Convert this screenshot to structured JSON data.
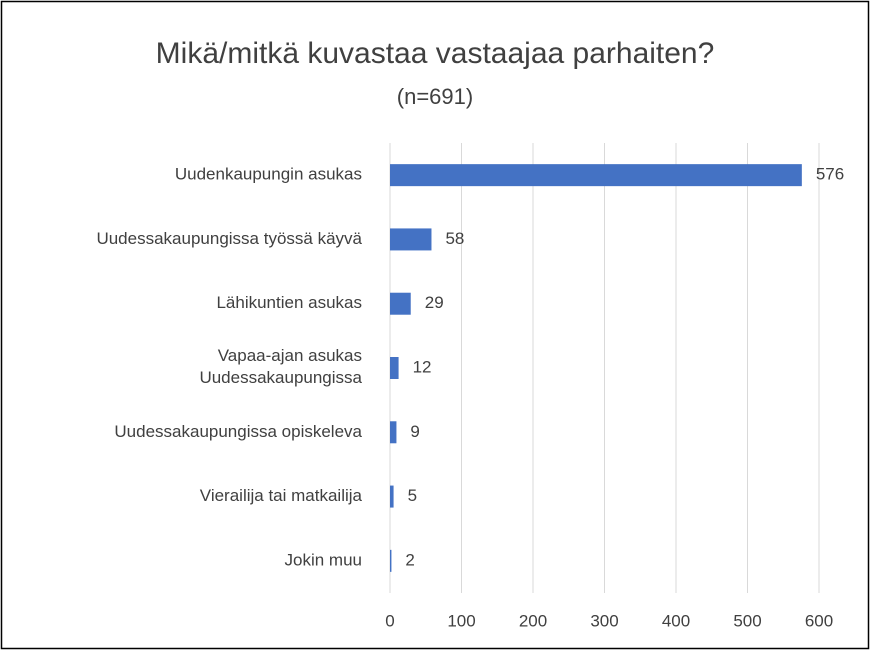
{
  "chart_data": {
    "type": "bar",
    "orientation": "horizontal",
    "title": "Mikä/mitkä kuvastaa vastaajaa parhaiten?",
    "subtitle": "(n=691)",
    "categories": [
      "Uudenkaupungin asukas",
      "Uudessakaupungissa työssä käyvä",
      "Lähikuntien asukas",
      "Vapaa-ajan asukas Uudessakaupungissa",
      "Uudessakaupungissa opiskeleva",
      "Vierailija tai matkailija",
      "Jokin muu"
    ],
    "values": [
      576,
      58,
      29,
      12,
      9,
      5,
      2
    ],
    "color": "#4472c4",
    "xlim": [
      0,
      600
    ],
    "xticks": [
      0,
      100,
      200,
      300,
      400,
      500,
      600
    ],
    "grid": true
  }
}
